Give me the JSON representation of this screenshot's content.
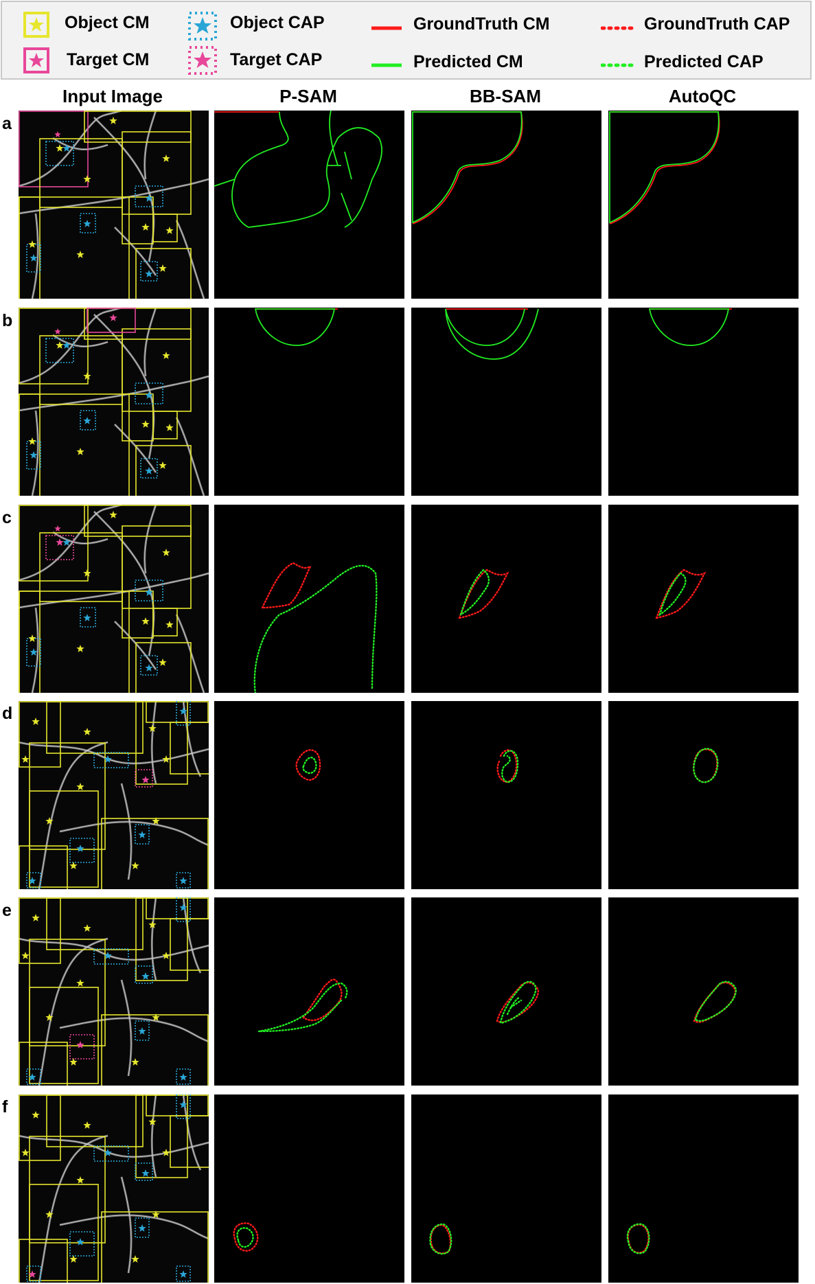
{
  "legend": {
    "object_cm": "Object CM",
    "object_cap": "Object CAP",
    "target_cm": "Target CM",
    "target_cap": "Target CAP",
    "groundtruth_cm": "GroundTruth CM",
    "groundtruth_cap": "GroundTruth CAP",
    "predicted_cm": "Predicted CM",
    "predicted_cap": "Predicted CAP"
  },
  "colors": {
    "object": "#e6e62e",
    "object_cap": "#2aa6d6",
    "target": "#e8479a",
    "groundtruth": "#ff1a1a",
    "predicted": "#22ee22"
  },
  "columns": [
    "Input Image",
    "P-SAM",
    "BB-SAM",
    "AutoQC"
  ],
  "rows": [
    "a",
    "b",
    "c",
    "d",
    "e",
    "f"
  ]
}
